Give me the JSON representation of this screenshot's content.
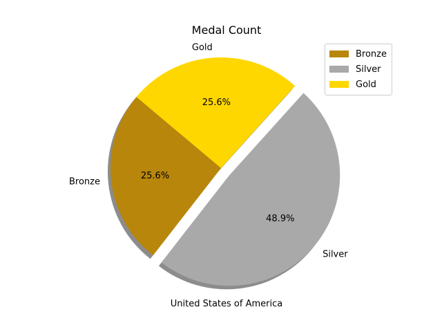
{
  "chart_data": {
    "type": "pie",
    "title": "Medal Count",
    "xlabel": "United States of America",
    "slices": [
      {
        "label": "Bronze",
        "value": 25.6,
        "pct_label": "25.6%",
        "color": "#B8860B"
      },
      {
        "label": "Silver",
        "value": 48.9,
        "pct_label": "48.9%",
        "color": "#A9A9A9"
      },
      {
        "label": "Gold",
        "value": 25.6,
        "pct_label": "25.6%",
        "color": "#FFD700"
      }
    ],
    "start_angle_deg": 140,
    "explode": [
      "Silver"
    ],
    "shadow": true,
    "legend": {
      "placement": "top-right"
    }
  }
}
